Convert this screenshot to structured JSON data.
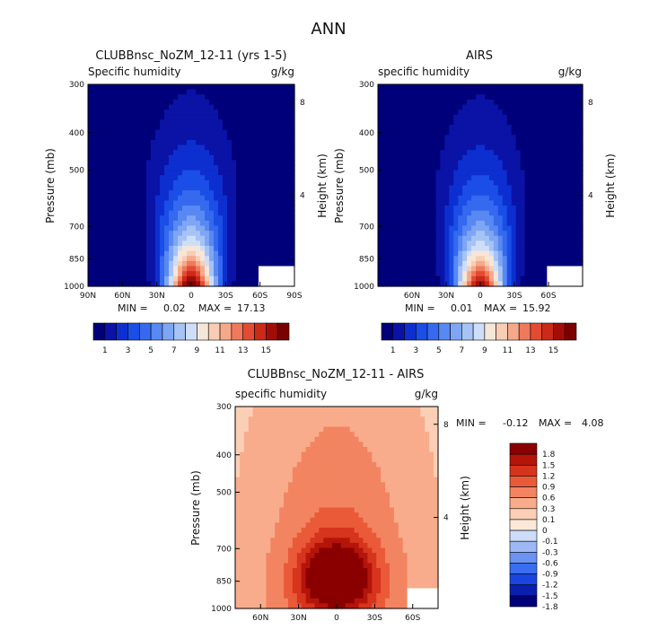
{
  "figure_title": "ANN",
  "colors": {
    "frame": "#000000",
    "missing": "#ffffff",
    "seq_levels": [
      "#00007a",
      "#0a13a6",
      "#0d2fd0",
      "#1a4ee6",
      "#3569ee",
      "#5888f2",
      "#7ea6f4",
      "#a6c3f6",
      "#cfdef8",
      "#f6e6d8",
      "#f8cdb4",
      "#f6a98a",
      "#f0795c",
      "#e34c32",
      "#cc2a18",
      "#a30d08",
      "#7a0000"
    ],
    "div_levels": [
      "#00007a",
      "#0a1fb0",
      "#1a45e0",
      "#3a6df0",
      "#6b93f3",
      "#9db8f5",
      "#cddcf8",
      "#fbe8d8",
      "#fbcfb5",
      "#f8ac8c",
      "#f38461",
      "#ea5a39",
      "#d6341c",
      "#b51509",
      "#8a0000"
    ]
  },
  "chart_data": [
    {
      "type": "heatmap",
      "id": "model",
      "title": "CLUBBnsc_NoZM_12-11 (yrs 1-5)",
      "left_string": "Specific humidity",
      "right_string": "g/kg",
      "ylabel": "Pressure (mb)",
      "ylabel_right": "Height (km)",
      "pressure_ticks": [
        "300",
        "400",
        "500",
        "700",
        "850",
        "1000"
      ],
      "height_ticks": [
        "8",
        "4"
      ],
      "lat_ticks": [
        "90N",
        "60N",
        "30N",
        "0",
        "30S",
        "60S",
        "90S"
      ],
      "min_label": "MIN =",
      "min_value": "0.02",
      "max_label": "MAX =",
      "max_value": "17.13",
      "colorbar_labels": [
        "1",
        "3",
        "5",
        "7",
        "9",
        "11",
        "13",
        "15"
      ],
      "lat_range": [
        90,
        -90
      ],
      "peak": 17.13
    },
    {
      "type": "heatmap",
      "id": "obs",
      "title": "AIRS",
      "left_string": "specific humidity",
      "right_string": "g/kg",
      "ylabel": "Pressure (mb)",
      "ylabel_right": "Height (km)",
      "pressure_ticks": [
        "300",
        "400",
        "500",
        "700",
        "850",
        "1000"
      ],
      "height_ticks": [
        "8",
        "4"
      ],
      "lat_ticks": [
        "60N",
        "30N",
        "0",
        "30S",
        "60S"
      ],
      "min_label": "MIN =",
      "min_value": "0.01",
      "max_label": "MAX =",
      "max_value": "15.92",
      "colorbar_labels": [
        "1",
        "3",
        "5",
        "7",
        "9",
        "11",
        "13",
        "15"
      ],
      "lat_range": [
        90,
        -90
      ],
      "peak": 15.92
    },
    {
      "type": "heatmap",
      "id": "diff",
      "title": "CLUBBnsc_NoZM_12-11 - AIRS",
      "left_string": "specific humidity",
      "right_string": "g/kg",
      "ylabel": "Pressure (mb)",
      "ylabel_right": "Height (km)",
      "pressure_ticks": [
        "300",
        "400",
        "500",
        "700",
        "850",
        "1000"
      ],
      "height_ticks": [
        "8",
        "4"
      ],
      "lat_ticks": [
        "60N",
        "30N",
        "0",
        "30S",
        "60S"
      ],
      "min_label": "MIN =",
      "min_value": "-0.12",
      "max_label": "MAX =",
      "max_value": "4.08",
      "colorbar_labels": [
        "1.8",
        "1.5",
        "1.2",
        "0.9",
        "0.6",
        "0.3",
        "0.1",
        "0",
        "-0.1",
        "-0.3",
        "-0.6",
        "-0.9",
        "-1.2",
        "-1.5",
        "-1.8"
      ],
      "lat_range": [
        80,
        -80
      ],
      "peak": 4.08
    }
  ]
}
